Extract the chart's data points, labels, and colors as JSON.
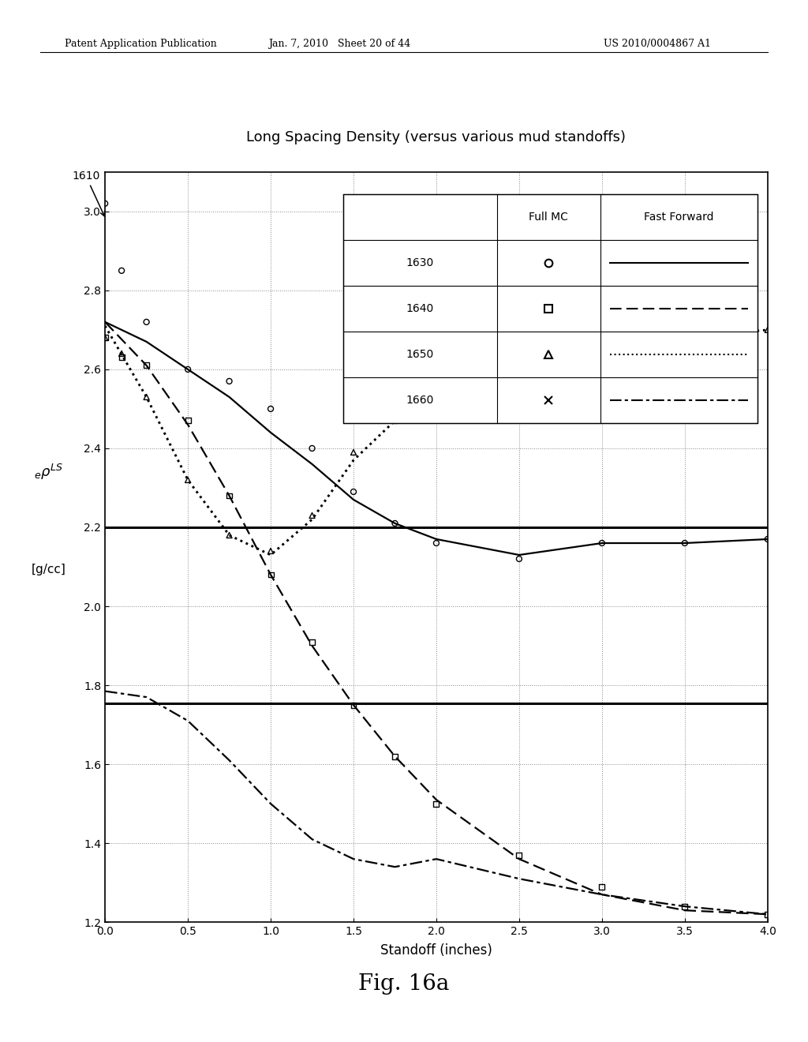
{
  "title": "Long Spacing Density (versus various mud standoffs)",
  "xlabel": "Standoff (inches)",
  "xlim": [
    0,
    4
  ],
  "ylim": [
    1.2,
    3.1
  ],
  "yticks": [
    1.2,
    1.4,
    1.6,
    1.8,
    2.0,
    2.2,
    2.4,
    2.6,
    2.8,
    3.0
  ],
  "xticks": [
    0,
    0.5,
    1.0,
    1.5,
    2.0,
    2.5,
    3.0,
    3.5,
    4.0
  ],
  "hline1": 2.2,
  "hline2": 1.755,
  "top_header_left": "Patent Application Publication",
  "top_header_mid": "Jan. 7, 2010   Sheet 20 of 44",
  "top_header_right": "US 2010/0004867 A1",
  "fig_label": "Fig. 16a",
  "curve1630_ff_x": [
    0.0,
    0.25,
    0.5,
    0.75,
    1.0,
    1.25,
    1.5,
    1.75,
    2.0,
    2.5,
    3.0,
    3.5,
    4.0
  ],
  "curve1630_ff_y": [
    2.72,
    2.67,
    2.6,
    2.53,
    2.44,
    2.36,
    2.27,
    2.21,
    2.17,
    2.13,
    2.16,
    2.16,
    2.17
  ],
  "curve1630_mc_x": [
    0.0,
    0.1,
    0.25,
    0.5,
    0.75,
    1.0,
    1.25,
    1.5,
    1.75,
    2.0,
    2.5,
    3.0,
    3.5,
    4.0
  ],
  "curve1630_mc_y": [
    3.02,
    2.85,
    2.72,
    2.6,
    2.57,
    2.5,
    2.4,
    2.29,
    2.21,
    2.16,
    2.12,
    2.16,
    2.16,
    2.17
  ],
  "curve1640_ff_x": [
    0.0,
    0.25,
    0.5,
    0.75,
    1.0,
    1.25,
    1.5,
    1.75,
    2.0,
    2.5,
    3.0,
    3.5,
    4.0
  ],
  "curve1640_ff_y": [
    2.72,
    2.61,
    2.46,
    2.28,
    2.08,
    1.9,
    1.75,
    1.62,
    1.51,
    1.36,
    1.27,
    1.23,
    1.22
  ],
  "curve1640_mc_x": [
    0.0,
    0.1,
    0.25,
    0.5,
    0.75,
    1.0,
    1.25,
    1.5,
    1.75,
    2.0,
    2.5,
    3.0,
    3.5,
    4.0
  ],
  "curve1640_mc_y": [
    2.68,
    2.63,
    2.61,
    2.47,
    2.28,
    2.08,
    1.91,
    1.75,
    1.62,
    1.5,
    1.37,
    1.29,
    1.24,
    1.22
  ],
  "curve1650_ff_x": [
    0.0,
    0.25,
    0.5,
    0.75,
    1.0,
    1.25,
    1.5,
    1.75,
    2.0,
    2.5,
    3.0,
    3.5,
    4.0
  ],
  "curve1650_ff_y": [
    2.71,
    2.53,
    2.32,
    2.18,
    2.13,
    2.22,
    2.37,
    2.47,
    2.55,
    2.63,
    2.66,
    2.68,
    2.7
  ],
  "curve1650_mc_x": [
    0.0,
    0.1,
    0.25,
    0.5,
    0.75,
    1.0,
    1.25,
    1.5,
    1.75,
    2.0,
    2.5,
    3.0,
    3.5,
    4.0
  ],
  "curve1650_mc_y": [
    2.68,
    2.64,
    2.53,
    2.32,
    2.18,
    2.14,
    2.23,
    2.39,
    2.47,
    2.55,
    2.62,
    2.65,
    2.68,
    2.7
  ],
  "curve1660_ff_x": [
    0.0,
    0.25,
    0.5,
    0.75,
    1.0,
    1.25,
    1.5,
    1.75,
    2.0,
    2.5,
    3.0,
    3.5,
    4.0
  ],
  "curve1660_ff_y": [
    1.785,
    1.77,
    1.71,
    1.61,
    1.5,
    1.41,
    1.36,
    1.34,
    1.36,
    1.31,
    1.27,
    1.24,
    1.22
  ],
  "curve1660_mc_x": [
    0.0,
    0.1,
    0.25,
    0.5,
    0.75,
    1.0,
    1.25,
    1.5,
    1.75,
    2.0,
    2.5,
    3.0,
    3.5,
    4.0
  ],
  "curve1660_mc_y": [
    1.78,
    1.77,
    1.76,
    1.7,
    1.6,
    1.5,
    1.41,
    1.36,
    1.35,
    1.37,
    1.31,
    1.27,
    1.24,
    1.22
  ]
}
